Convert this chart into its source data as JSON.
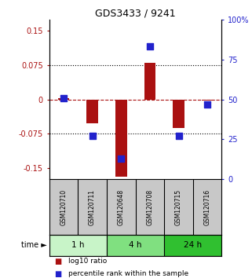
{
  "title": "GDS3433 / 9241",
  "samples": [
    "GSM120710",
    "GSM120711",
    "GSM120648",
    "GSM120708",
    "GSM120715",
    "GSM120716"
  ],
  "log10_ratio": [
    0.003,
    -0.052,
    -0.17,
    0.08,
    -0.062,
    -0.003
  ],
  "percentile_rank": [
    51,
    27,
    13,
    83,
    27,
    47
  ],
  "ylim_left": [
    -0.175,
    0.175
  ],
  "ylim_right": [
    0,
    100
  ],
  "yticks_left": [
    -0.15,
    -0.075,
    0,
    0.075,
    0.15
  ],
  "ytick_labels_left": [
    "-0.15",
    "-0.075",
    "0",
    "0.075",
    "0.15"
  ],
  "yticks_right": [
    0,
    25,
    50,
    75,
    100
  ],
  "ytick_labels_right": [
    "0",
    "25",
    "50",
    "75",
    "100%"
  ],
  "hlines_dotted": [
    -0.075,
    0.075
  ],
  "hline_dashed": 0,
  "time_groups": [
    {
      "label": "1 h",
      "samples": [
        "GSM120710",
        "GSM120711"
      ],
      "color": "#c8f4c8"
    },
    {
      "label": "4 h",
      "samples": [
        "GSM120648",
        "GSM120708"
      ],
      "color": "#80e080"
    },
    {
      "label": "24 h",
      "samples": [
        "GSM120715",
        "GSM120716"
      ],
      "color": "#30c030"
    }
  ],
  "bar_color": "#aa1111",
  "dot_color": "#2222cc",
  "bar_width": 0.4,
  "dot_size": 40,
  "legend_items": [
    "log10 ratio",
    "percentile rank within the sample"
  ],
  "legend_colors": [
    "#aa1111",
    "#2222cc"
  ],
  "sample_box_color": "#c8c8c8",
  "background_color": "#ffffff"
}
